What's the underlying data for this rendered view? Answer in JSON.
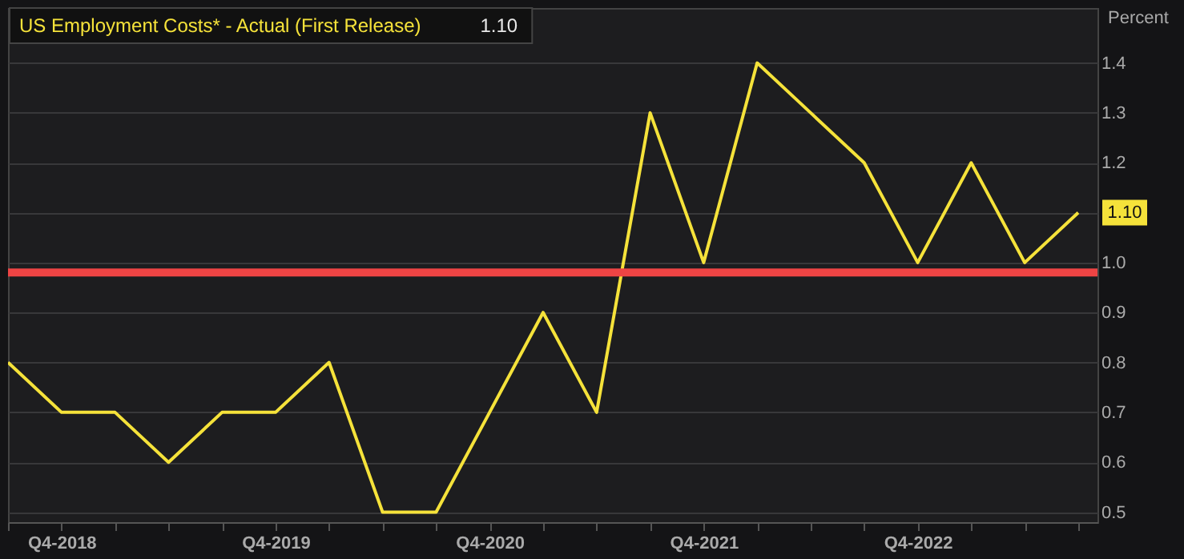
{
  "chart_data": {
    "type": "line",
    "categories": [
      null,
      "Q4-2018",
      null,
      null,
      null,
      "Q4-2019",
      null,
      null,
      null,
      "Q4-2020",
      null,
      null,
      null,
      "Q4-2021",
      null,
      null,
      null,
      "Q4-2022",
      null,
      null,
      null
    ],
    "series": [
      {
        "name": "US Employment Costs* - Actual (First Release)",
        "color": "#f5e23a",
        "values": [
          0.8,
          0.7,
          0.7,
          0.6,
          0.7,
          0.7,
          0.8,
          0.5,
          0.5,
          0.7,
          0.9,
          0.7,
          1.3,
          1.0,
          1.4,
          1.3,
          1.2,
          1.0,
          1.2,
          1.0,
          1.1
        ],
        "value_labels": [
          null,
          null,
          null,
          null,
          null,
          null,
          null,
          null,
          null,
          null,
          null,
          null,
          null,
          null,
          null,
          null,
          null,
          null,
          null,
          null,
          "1.10"
        ]
      }
    ],
    "annotations": [
      "1.10"
    ],
    "ylabel": "Percent",
    "ylim": [
      0.48,
      1.51
    ],
    "yticks": [
      0.5,
      0.6,
      0.7,
      0.8,
      0.9,
      {
        "value": 1.0,
        "label": "1.0"
      },
      {
        "value": 1.1,
        "label": null
      },
      1.2,
      1.3,
      1.4
    ],
    "ref_lines": [
      {
        "axis": "y",
        "value": 0.98,
        "color": "#ee4444"
      }
    ],
    "grid": "y",
    "legend": "top left"
  }
}
